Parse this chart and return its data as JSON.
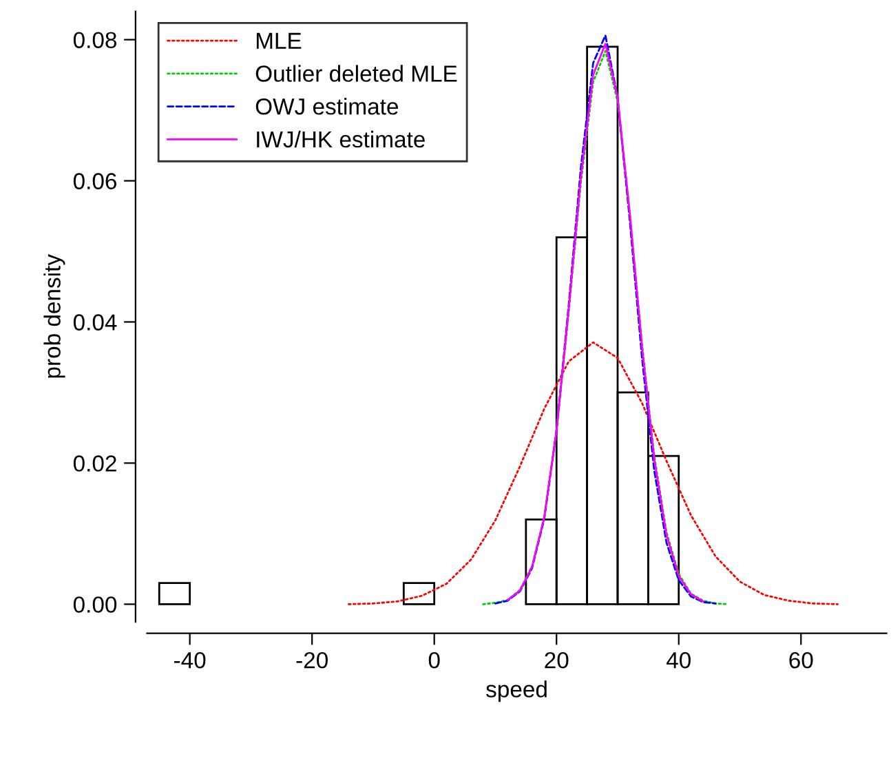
{
  "chart_data": {
    "type": "histogram",
    "xlabel": "speed",
    "ylabel": "prob density",
    "bins": [
      -45,
      -40,
      -35,
      -30,
      -25,
      -20,
      -15,
      -10,
      -5,
      0,
      5,
      10,
      15,
      20,
      25,
      30,
      35,
      40
    ],
    "values": [
      0.003,
      0,
      0,
      0,
      0,
      0,
      0,
      0,
      0.003,
      0,
      0,
      0,
      0.012,
      0.052,
      0.079,
      0.03,
      0.021
    ],
    "color": "#000000",
    "series": [
      {
        "name": "MLE",
        "type": "line",
        "color": "#ff0000",
        "line_style": "dotted",
        "x": [
          -14,
          -10,
          -6,
          -2,
          2,
          6,
          10,
          14,
          18,
          22,
          26,
          30,
          34,
          38,
          42,
          46,
          50,
          54,
          58,
          62,
          66
        ],
        "values": [
          0.0,
          0.0001,
          0.0004,
          0.0012,
          0.0029,
          0.0063,
          0.0119,
          0.0195,
          0.0277,
          0.0344,
          0.0371,
          0.0349,
          0.0285,
          0.0203,
          0.0126,
          0.0068,
          0.0032,
          0.0013,
          0.0005,
          0.0001,
          0.0
        ]
      },
      {
        "name": "Outlier deleted MLE",
        "type": "line",
        "color": "#00cc00",
        "line_style": "dotted",
        "x": [
          8,
          10,
          12,
          14,
          16,
          18,
          20,
          22,
          24,
          26,
          28,
          30,
          32,
          34,
          36,
          38,
          40,
          42,
          44,
          46,
          48
        ],
        "values": [
          0.0,
          0.0002,
          0.0006,
          0.002,
          0.0054,
          0.0124,
          0.0245,
          0.0414,
          0.0598,
          0.074,
          0.0784,
          0.0712,
          0.0553,
          0.0368,
          0.021,
          0.0102,
          0.0043,
          0.0015,
          0.0005,
          0.0001,
          0.0
        ]
      },
      {
        "name": "OWJ estimate",
        "type": "line",
        "color": "#0000ff",
        "line_style": "dashed",
        "x": [
          10,
          12,
          14,
          16,
          18,
          20,
          22,
          24,
          26,
          28,
          30,
          32,
          34,
          36,
          38,
          40,
          42,
          44,
          46
        ],
        "values": [
          0.0001,
          0.0005,
          0.0018,
          0.0051,
          0.0121,
          0.0246,
          0.0424,
          0.062,
          0.0767,
          0.0806,
          0.0718,
          0.0543,
          0.0348,
          0.0189,
          0.0087,
          0.0034,
          0.0011,
          0.0003,
          0.0001
        ]
      },
      {
        "name": "IWJ/HK estimate",
        "type": "line",
        "color": "#ff00ff",
        "line_style": "solid",
        "x": [
          12,
          14,
          16,
          18,
          20,
          22,
          24,
          26,
          28,
          30,
          32,
          34,
          36,
          38,
          40,
          42,
          44
        ],
        "values": [
          0.0006,
          0.0019,
          0.0053,
          0.0123,
          0.0246,
          0.0418,
          0.0606,
          0.075,
          0.0794,
          0.0718,
          0.0553,
          0.0364,
          0.0205,
          0.0098,
          0.004,
          0.0014,
          0.0004
        ]
      }
    ],
    "xlim": [
      -47,
      74
    ],
    "ylim": [
      -0.0025,
      0.084
    ],
    "xticks": [
      -40,
      -20,
      0,
      20,
      40,
      60
    ],
    "yticks": [
      {
        "value": 0,
        "label": "0.00"
      },
      {
        "value": 0.02,
        "label": "0.02"
      },
      {
        "value": 0.04,
        "label": "0.04"
      },
      {
        "value": 0.06,
        "label": "0.06"
      },
      {
        "value": 0.08,
        "label": "0.08"
      }
    ],
    "legend": "top left",
    "marker": "none"
  }
}
